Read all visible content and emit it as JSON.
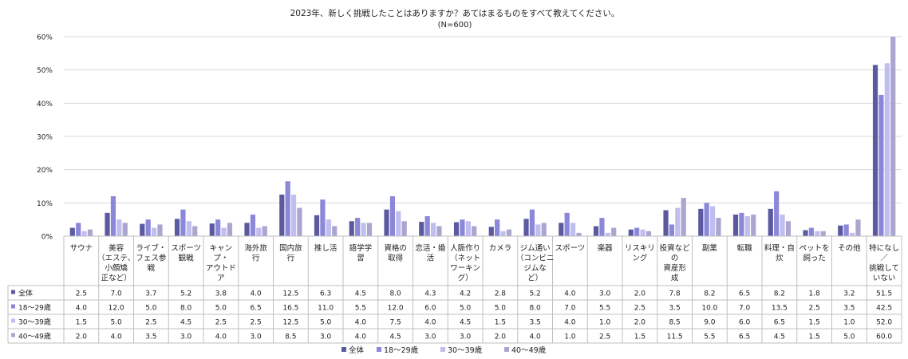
{
  "chart_data": {
    "type": "bar",
    "title": "2023年、新しく挑戦したことはありますか？あてはまるものをすべて教えてください。",
    "subtitle": "(N=600)",
    "categories": [
      "サウナ",
      "美容（エステ、小顔矯正など）",
      "ライブ・フェス参戦",
      "スポーツ観戦",
      "キャンプ・アウトドア",
      "海外旅行",
      "国内旅行",
      "推し活",
      "語学学習",
      "資格の取得",
      "恋活・婚活",
      "人脈作り（ネットワーキング）",
      "カメラ",
      "ジム通い（コンビニジムなど）",
      "スポーツ",
      "楽器",
      "リスキリング",
      "投資などの資産形成",
      "副業",
      "転職",
      "料理・自炊",
      "ペットを飼った",
      "その他",
      "特になし／挑戦していない"
    ],
    "category_lines": [
      [
        "サウナ"
      ],
      [
        "美容",
        "（エステ、",
        "小顔矯",
        "正など）"
      ],
      [
        "ライブ・",
        "フェス参",
        "戦"
      ],
      [
        "スポーツ",
        "観戦"
      ],
      [
        "キャン",
        "プ・",
        "アウトド",
        "ア"
      ],
      [
        "海外旅",
        "行"
      ],
      [
        "国内旅",
        "行"
      ],
      [
        "推し活"
      ],
      [
        "語学学",
        "習"
      ],
      [
        "資格の",
        "取得"
      ],
      [
        "恋活・婚",
        "活"
      ],
      [
        "人脈作り",
        "（ネット",
        "ワーキン",
        "グ）"
      ],
      [
        "カメラ"
      ],
      [
        "ジム通い",
        "（コンビニ",
        "ジムな",
        "ど）"
      ],
      [
        "スポーツ"
      ],
      [
        "楽器"
      ],
      [
        "リスキリ",
        "ング"
      ],
      [
        "投資など",
        "の",
        "資産形",
        "成"
      ],
      [
        "副業"
      ],
      [
        "転職"
      ],
      [
        "料理・自",
        "炊"
      ],
      [
        "ペットを",
        "飼った"
      ],
      [
        "その他"
      ],
      [
        "特になし",
        "／",
        "挑戦して",
        "いない"
      ]
    ],
    "series": [
      {
        "name": "全体",
        "color": "#5b5aa0",
        "values": [
          2.5,
          7.0,
          3.7,
          5.2,
          3.8,
          4.0,
          12.5,
          6.3,
          4.5,
          8.0,
          4.3,
          4.2,
          2.8,
          5.2,
          4.0,
          3.0,
          2.0,
          7.8,
          8.2,
          6.5,
          8.2,
          1.8,
          3.2,
          51.5
        ]
      },
      {
        "name": "18～29歳",
        "color": "#8b87d9",
        "values": [
          4.0,
          12.0,
          5.0,
          8.0,
          5.0,
          6.5,
          16.5,
          11.0,
          5.5,
          12.0,
          6.0,
          5.0,
          5.0,
          8.0,
          7.0,
          5.5,
          2.5,
          3.5,
          10.0,
          7.0,
          13.5,
          2.5,
          3.5,
          42.5
        ]
      },
      {
        "name": "30～39歳",
        "color": "#c0bef0",
        "values": [
          1.5,
          5.0,
          2.5,
          4.5,
          2.5,
          2.5,
          12.5,
          5.0,
          4.0,
          7.5,
          4.0,
          4.5,
          1.5,
          3.5,
          4.0,
          1.0,
          2.0,
          8.5,
          9.0,
          6.0,
          6.5,
          1.5,
          1.0,
          52.0
        ]
      },
      {
        "name": "40～49歳",
        "color": "#aba5cf",
        "values": [
          2.0,
          4.0,
          3.5,
          3.0,
          4.0,
          3.0,
          8.5,
          3.0,
          4.0,
          4.5,
          3.0,
          3.0,
          2.0,
          4.0,
          1.0,
          2.5,
          1.5,
          11.5,
          5.5,
          6.5,
          4.5,
          1.5,
          5.0,
          60.0
        ]
      }
    ],
    "table_rows": [
      {
        "label": "全体",
        "values": [
          "2.5",
          "7.0",
          "3.7",
          "5.2",
          "3.8",
          "4.0",
          "12.5",
          "6.3",
          "4.5",
          "8.0",
          "4.3",
          "4.2",
          "2.8",
          "5.2",
          "4.0",
          "3.0",
          "2.0",
          "7.8",
          "8.2",
          "6.5",
          "8.2",
          "1.8",
          "3.2",
          "51.5"
        ]
      },
      {
        "label": "18～29歳",
        "values": [
          "4.0",
          "12.0",
          "5.0",
          "8.0",
          "5.0",
          "6.5",
          "16.5",
          "11.0",
          "5.5",
          "12.0",
          "6.0",
          "5.0",
          "5.0",
          "8.0",
          "7.0",
          "5.5",
          "2.5",
          "3.5",
          "10.0",
          "7.0",
          "13.5",
          "2.5",
          "3.5",
          "42.5"
        ]
      },
      {
        "label": "30～39歳",
        "values": [
          "1.5",
          "5.0",
          "2.5",
          "4.5",
          "2.5",
          "2.5",
          "12.5",
          "5.0",
          "4.0",
          "7.5",
          "4.0",
          "4.5",
          "1.5",
          "3.5",
          "4.0",
          "1.0",
          "2.0",
          "8.5",
          "9.0",
          "6.0",
          "6.5",
          "1.5",
          "1.0",
          "52.0"
        ]
      },
      {
        "label": "40～49歳",
        "values": [
          "2.0",
          "4.0",
          "3.5",
          "3.0",
          "4.0",
          "3.0",
          "8.5",
          "3.0",
          "4.0",
          "4.5",
          "3.0",
          "3.0",
          "2.0",
          "4.0",
          "1.0",
          "2.5",
          "1.5",
          "11.5",
          "5.5",
          "6.5",
          "4.5",
          "1.5",
          "5.0",
          "60.0"
        ]
      }
    ],
    "y_ticks": [
      "0%",
      "10%",
      "20%",
      "30%",
      "40%",
      "50%",
      "60%"
    ],
    "ylim": [
      0,
      60
    ],
    "grid": true,
    "legend_position": "bottom-center",
    "legend": [
      "全体",
      "18～29歳",
      "30～39歳",
      "40～49歳"
    ]
  }
}
